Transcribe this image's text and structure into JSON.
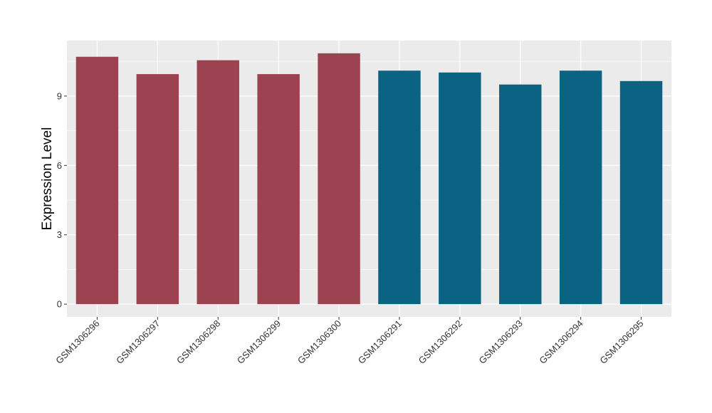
{
  "chart_data": {
    "type": "bar",
    "title": "",
    "xlabel": "",
    "ylabel": "Expression Level",
    "ylim": [
      -0.55,
      11.4
    ],
    "yticks": [
      0,
      3,
      6,
      9
    ],
    "grid": true,
    "legend": "none",
    "categories": [
      "GSM1306296",
      "GSM1306297",
      "GSM1306298",
      "GSM1306299",
      "GSM1306300",
      "GSM1306291",
      "GSM1306292",
      "GSM1306293",
      "GSM1306294",
      "GSM1306295"
    ],
    "values": [
      10.7,
      9.95,
      10.55,
      9.95,
      10.85,
      10.1,
      10.02,
      9.5,
      10.1,
      9.65
    ],
    "bar_colors": [
      "#9b4350",
      "#9b4350",
      "#9b4350",
      "#9b4350",
      "#9b4350",
      "#0b6384",
      "#0b6384",
      "#0b6384",
      "#0b6384",
      "#0b6384"
    ],
    "panel_color": "#ebebeb",
    "grid_color": "#ffffff"
  }
}
